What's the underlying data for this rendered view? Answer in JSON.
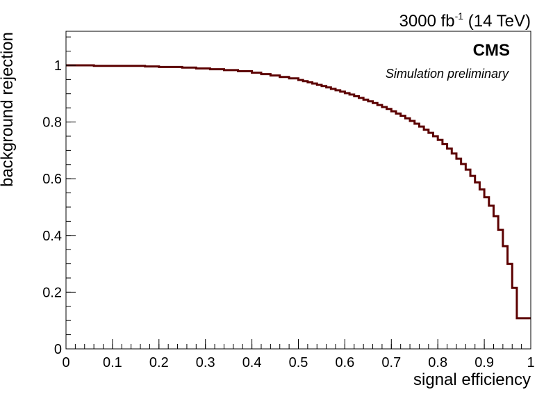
{
  "header": {
    "lumi_value": "3000 fb",
    "lumi_exponent": "-1",
    "lumi_energy": " (14 TeV)"
  },
  "labels": {
    "cms": "CMS",
    "status": "Simulation preliminary"
  },
  "colors": {
    "curve": "#5c0000",
    "axis": "#000000",
    "background": "#ffffff"
  },
  "chart_data": {
    "type": "line",
    "style": "step",
    "xlabel": "signal efficiency",
    "ylabel": "background rejection",
    "xlim": [
      0,
      1
    ],
    "ylim": [
      0,
      1.12
    ],
    "x_ticks": [
      0,
      0.1,
      0.2,
      0.3,
      0.4,
      0.5,
      0.6,
      0.7,
      0.8,
      0.9,
      1
    ],
    "x_tick_labels": [
      "0",
      "0.1",
      "0.2",
      "0.3",
      "0.4",
      "0.5",
      "0.6",
      "0.7",
      "0.8",
      "0.9",
      "1"
    ],
    "y_ticks": [
      0,
      0.2,
      0.4,
      0.6,
      0.8,
      1
    ],
    "y_tick_labels": [
      "0",
      "0.2",
      "0.4",
      "0.6",
      "0.8",
      "1"
    ],
    "grid": false,
    "series": [
      {
        "x": [
          0,
          0.06,
          0.17,
          0.2,
          0.25,
          0.28,
          0.31,
          0.34,
          0.37,
          0.4,
          0.42,
          0.44,
          0.46,
          0.48,
          0.5,
          0.51,
          0.52,
          0.53,
          0.54,
          0.55,
          0.56,
          0.57,
          0.58,
          0.59,
          0.6,
          0.61,
          0.62,
          0.63,
          0.64,
          0.65,
          0.66,
          0.67,
          0.68,
          0.69,
          0.7,
          0.71,
          0.72,
          0.73,
          0.74,
          0.75,
          0.76,
          0.77,
          0.78,
          0.79,
          0.8,
          0.81,
          0.82,
          0.83,
          0.84,
          0.85,
          0.86,
          0.87,
          0.88,
          0.89,
          0.9,
          0.91,
          0.92,
          0.93,
          0.94,
          0.95,
          0.96,
          0.97,
          0.98,
          0.99,
          1.0
        ],
        "y": [
          1.0,
          0.998,
          0.996,
          0.994,
          0.992,
          0.989,
          0.986,
          0.983,
          0.979,
          0.974,
          0.969,
          0.964,
          0.959,
          0.954,
          0.948,
          0.944,
          0.94,
          0.936,
          0.931,
          0.927,
          0.922,
          0.917,
          0.912,
          0.907,
          0.902,
          0.897,
          0.891,
          0.885,
          0.879,
          0.873,
          0.867,
          0.86,
          0.853,
          0.846,
          0.838,
          0.83,
          0.822,
          0.813,
          0.804,
          0.794,
          0.784,
          0.773,
          0.762,
          0.75,
          0.737,
          0.722,
          0.706,
          0.689,
          0.671,
          0.652,
          0.632,
          0.61,
          0.587,
          0.562,
          0.535,
          0.505,
          0.468,
          0.42,
          0.362,
          0.3,
          0.215,
          0.108,
          0.108,
          0.108,
          0.108
        ]
      }
    ]
  }
}
